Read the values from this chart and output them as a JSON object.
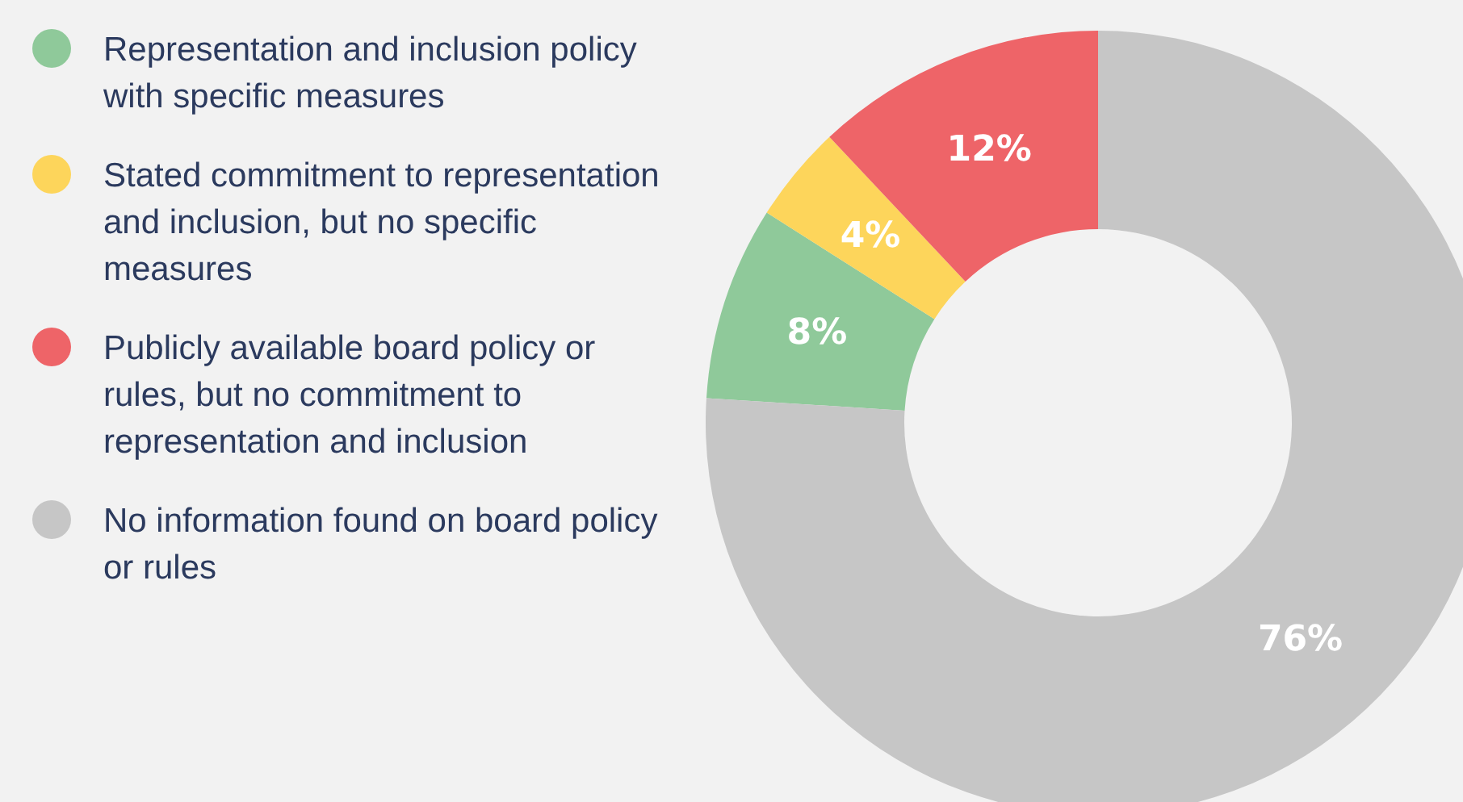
{
  "chart_data": {
    "type": "donut",
    "categories": [
      "Representation and inclusion policy with specific measures",
      "Stated commitment to representation and inclusion, but no specific measures",
      "Publicly available board policy or rules, but no commitment to representation and inclusion",
      "No information found on board policy or rules"
    ],
    "values": [
      8,
      4,
      12,
      76
    ],
    "colors": [
      "#8fc99a",
      "#fdd55b",
      "#ee6468",
      "#c6c6c6"
    ],
    "value_labels": [
      "8%",
      "4%",
      "12%",
      "76%"
    ],
    "legend": "left"
  }
}
